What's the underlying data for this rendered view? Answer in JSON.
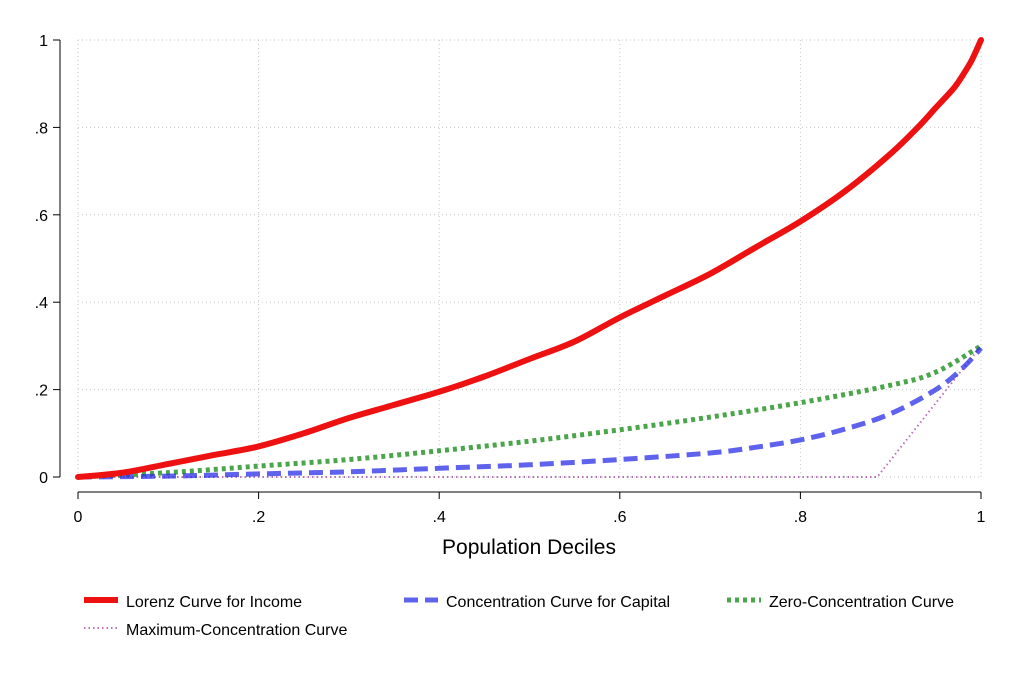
{
  "chart_data": {
    "type": "line",
    "title": "",
    "xlabel": "Population Deciles",
    "ylabel": "",
    "xlim": [
      0,
      1
    ],
    "ylim": [
      0,
      1
    ],
    "xticks": [
      {
        "value": 0,
        "label": "0"
      },
      {
        "value": 0.2,
        "label": ".2"
      },
      {
        "value": 0.4,
        "label": ".4"
      },
      {
        "value": 0.6,
        "label": ".6"
      },
      {
        "value": 0.8,
        "label": ".8"
      },
      {
        "value": 1,
        "label": "1"
      }
    ],
    "yticks": [
      {
        "value": 0,
        "label": "0"
      },
      {
        "value": 0.2,
        "label": ".2"
      },
      {
        "value": 0.4,
        "label": ".4"
      },
      {
        "value": 0.6,
        "label": ".6"
      },
      {
        "value": 0.8,
        "label": ".8"
      },
      {
        "value": 1,
        "label": "1"
      }
    ],
    "grid": true,
    "legend_position": "bottom",
    "series": [
      {
        "name": "Lorenz Curve for Income",
        "color": "#ee1111",
        "style": "solid",
        "x": [
          0,
          0.05,
          0.1,
          0.15,
          0.2,
          0.25,
          0.3,
          0.35,
          0.4,
          0.45,
          0.5,
          0.55,
          0.6,
          0.65,
          0.7,
          0.75,
          0.8,
          0.85,
          0.9,
          0.93,
          0.95,
          0.97,
          0.98,
          0.99,
          1.0
        ],
        "y": [
          0,
          0.01,
          0.03,
          0.05,
          0.07,
          0.1,
          0.135,
          0.165,
          0.195,
          0.23,
          0.27,
          0.31,
          0.365,
          0.415,
          0.465,
          0.525,
          0.585,
          0.655,
          0.74,
          0.8,
          0.845,
          0.89,
          0.92,
          0.955,
          1.0
        ]
      },
      {
        "name": "Concentration Curve for Capital",
        "color": "#2a2ee6",
        "style": "dash",
        "x": [
          0,
          0.1,
          0.2,
          0.3,
          0.4,
          0.5,
          0.6,
          0.7,
          0.75,
          0.8,
          0.85,
          0.9,
          0.95,
          0.98,
          1.0
        ],
        "y": [
          0,
          0.002,
          0.007,
          0.012,
          0.02,
          0.028,
          0.04,
          0.055,
          0.068,
          0.085,
          0.11,
          0.145,
          0.2,
          0.25,
          0.295
        ]
      },
      {
        "name": "Zero-Concentration Curve",
        "color": "#2c962c",
        "style": "dot",
        "x": [
          0,
          0.1,
          0.2,
          0.3,
          0.4,
          0.5,
          0.6,
          0.7,
          0.8,
          0.9,
          0.95,
          1.0
        ],
        "y": [
          0,
          0.01,
          0.025,
          0.04,
          0.06,
          0.082,
          0.108,
          0.137,
          0.17,
          0.21,
          0.24,
          0.3
        ]
      },
      {
        "name": "Maximum-Concentration Curve",
        "color": "#b560b5",
        "style": "fine-dot",
        "x": [
          0,
          0.885,
          1.0
        ],
        "y": [
          0,
          0,
          0.3
        ]
      }
    ]
  }
}
